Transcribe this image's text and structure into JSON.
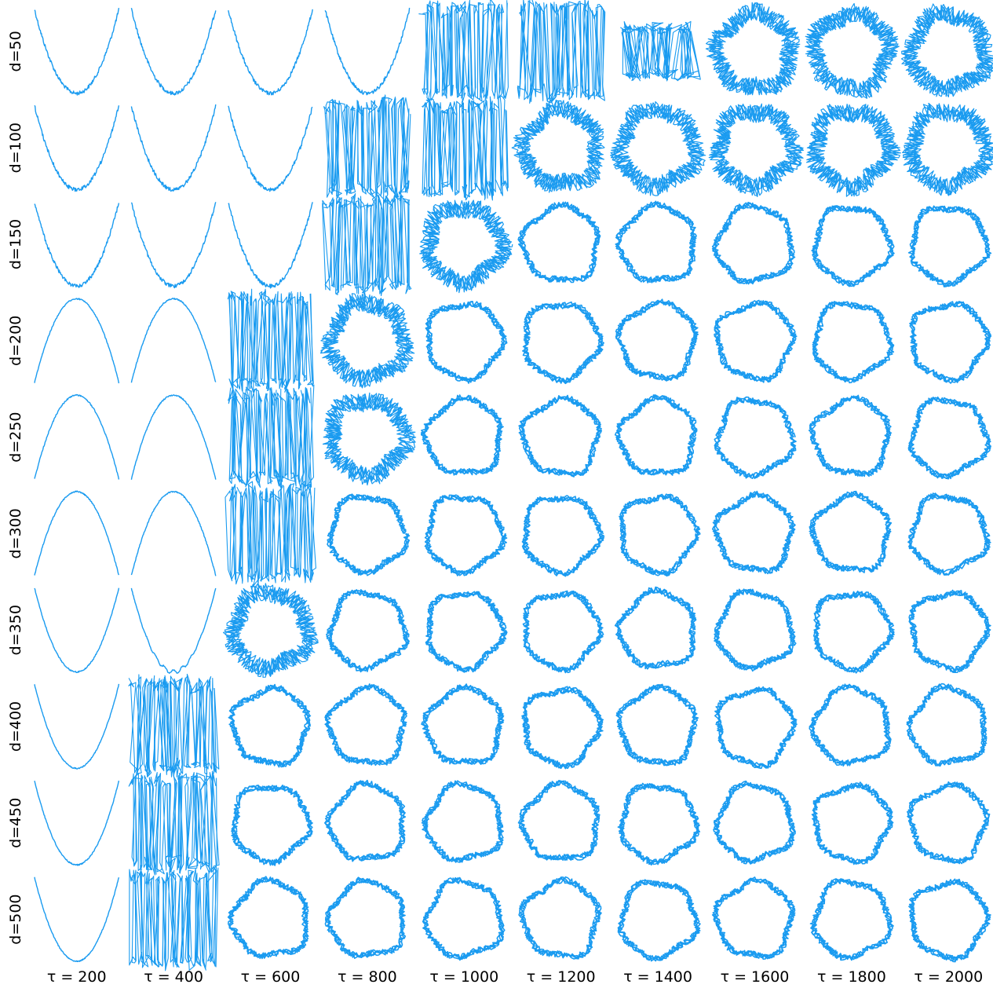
{
  "chart_data": {
    "type": "line",
    "title": "",
    "layout": "small-multiples grid, 10 rows x 10 columns, axes hidden",
    "grid": false,
    "legend": "none",
    "row_labels": [
      "d=50",
      "d=100",
      "d=150",
      "d=200",
      "d=250",
      "d=300",
      "d=350",
      "d=400",
      "d=450",
      "d=500"
    ],
    "col_labels": [
      "τ = 200",
      "τ = 400",
      "τ = 600",
      "τ = 800",
      "τ = 1000",
      "τ = 1200",
      "τ = 1400",
      "τ = 1600",
      "τ = 1800",
      "τ = 2000"
    ],
    "color": "#1a9bf0",
    "panel_shapes": [
      [
        "parabola-up",
        "parabola-up",
        "parabola-up",
        "parabola-up",
        "zigzag",
        "zigzag",
        "zigzag-blob",
        "ring-noisy",
        "ring-noisy",
        "ring-noisy"
      ],
      [
        "parabola-up",
        "parabola-up",
        "parabola-up",
        "zigzag",
        "zigzag",
        "ring-noisy",
        "ring-noisy",
        "ring-noisy",
        "ring-noisy",
        "ring-noisy"
      ],
      [
        "parabola-up",
        "parabola-up",
        "parabola-up",
        "zigzag",
        "ring-noisy",
        "ring",
        "ring",
        "ring",
        "ring",
        "ring"
      ],
      [
        "parabola-down",
        "parabola-down",
        "zigzag",
        "ring-noisy",
        "ring",
        "ring",
        "ring",
        "ring",
        "ring",
        "ring"
      ],
      [
        "parabola-down",
        "parabola-down",
        "zigzag",
        "ring-noisy",
        "ring",
        "ring",
        "ring",
        "ring",
        "ring",
        "ring"
      ],
      [
        "parabola-down",
        "parabola-down",
        "zigzag",
        "ring",
        "ring",
        "ring",
        "ring",
        "ring",
        "ring",
        "ring"
      ],
      [
        "parabola-up",
        "parabola-up-wavy",
        "ring-noisy",
        "ring",
        "ring",
        "ring",
        "ring",
        "ring",
        "ring",
        "ring"
      ],
      [
        "parabola-up",
        "zigzag",
        "ring",
        "ring",
        "ring",
        "ring",
        "ring",
        "ring",
        "ring",
        "ring"
      ],
      [
        "parabola-up",
        "zigzag",
        "ring",
        "ring",
        "ring",
        "ring",
        "ring",
        "ring",
        "ring",
        "ring"
      ],
      [
        "parabola-up",
        "zigzag",
        "ring",
        "ring",
        "ring",
        "ring",
        "ring",
        "ring",
        "ring",
        "ring"
      ]
    ]
  }
}
